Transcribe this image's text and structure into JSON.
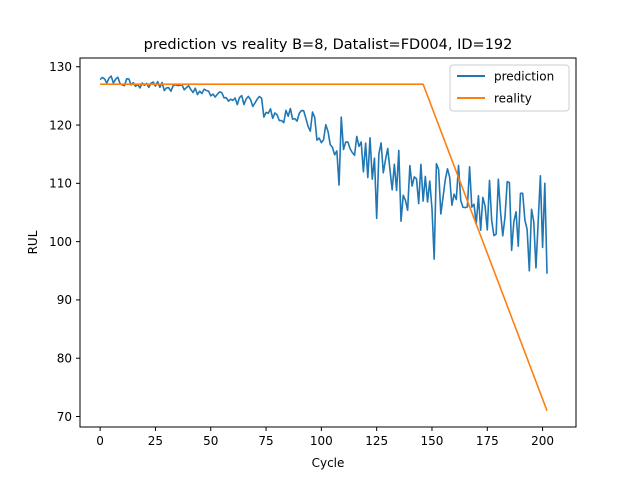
{
  "chart_data": {
    "type": "line",
    "title": "prediction vs reality B=8, Datalist=FD004, ID=192",
    "xlabel": "Cycle",
    "ylabel": "RUL",
    "xlim": [
      -9.1,
      215.1
    ],
    "ylim": [
      68.2,
      131.5
    ],
    "xticks": [
      0,
      25,
      50,
      75,
      100,
      125,
      150,
      175,
      200
    ],
    "yticks": [
      70,
      80,
      90,
      100,
      110,
      120,
      130
    ],
    "grid": false,
    "legend_position": "top-right",
    "colors": {
      "prediction": "#1f77b4",
      "reality": "#ff7f0e"
    },
    "series": [
      {
        "name": "prediction",
        "color": "#1f77b4",
        "anchors": [
          [
            0,
            127.8
          ],
          [
            5,
            127.5
          ],
          [
            10,
            127.5
          ],
          [
            15,
            127.2
          ],
          [
            20,
            127.0
          ],
          [
            25,
            126.8
          ],
          [
            30,
            126.5
          ],
          [
            35,
            126.3
          ],
          [
            40,
            126.0
          ],
          [
            45,
            125.8
          ],
          [
            50,
            125.5
          ],
          [
            55,
            125.0
          ],
          [
            60,
            124.7
          ],
          [
            65,
            124.3
          ],
          [
            70,
            123.8
          ],
          [
            75,
            123.2
          ],
          [
            80,
            122.3
          ],
          [
            85,
            121.5
          ],
          [
            90,
            121.8
          ],
          [
            95,
            121.0
          ],
          [
            100,
            119.0
          ],
          [
            105,
            118.0
          ],
          [
            110,
            117.0
          ],
          [
            115,
            115.5
          ],
          [
            120,
            115.0
          ],
          [
            125,
            113.5
          ],
          [
            130,
            113.0
          ],
          [
            135,
            111.5
          ],
          [
            140,
            110.0
          ],
          [
            145,
            109.5
          ],
          [
            150,
            109.0
          ],
          [
            155,
            109.2
          ],
          [
            160,
            108.5
          ],
          [
            165,
            107.5
          ],
          [
            170,
            107.0
          ],
          [
            175,
            106.0
          ],
          [
            180,
            106.0
          ],
          [
            185,
            105.5
          ],
          [
            190,
            104.5
          ],
          [
            195,
            104.0
          ],
          [
            200,
            104.2
          ],
          [
            202,
            103.8
          ]
        ],
        "noise": [
          [
            0,
            0.6
          ],
          [
            25,
            0.8
          ],
          [
            50,
            1.0
          ],
          [
            75,
            1.5
          ],
          [
            100,
            2.5
          ],
          [
            120,
            4.0
          ],
          [
            140,
            5.0
          ],
          [
            160,
            5.0
          ],
          [
            180,
            5.5
          ],
          [
            202,
            5.5
          ]
        ],
        "overrides": [
          [
            0,
            127.8
          ],
          [
            3,
            127.2
          ],
          [
            5,
            128.4
          ],
          [
            108,
            109.7
          ],
          [
            125,
            104.0
          ],
          [
            136,
            103.5
          ],
          [
            151,
            97.0
          ],
          [
            157,
            112.5
          ],
          [
            170,
            103.0
          ],
          [
            176,
            110.5
          ],
          [
            186,
            98.5
          ],
          [
            194,
            95.0
          ],
          [
            197,
            95.5
          ],
          [
            199,
            111.3
          ],
          [
            201,
            110.0
          ],
          [
            202,
            94.5
          ]
        ]
      },
      {
        "name": "reality",
        "color": "#ff7f0e",
        "x": [
          0,
          146,
          202
        ],
        "y": [
          127,
          127,
          71
        ]
      }
    ]
  }
}
